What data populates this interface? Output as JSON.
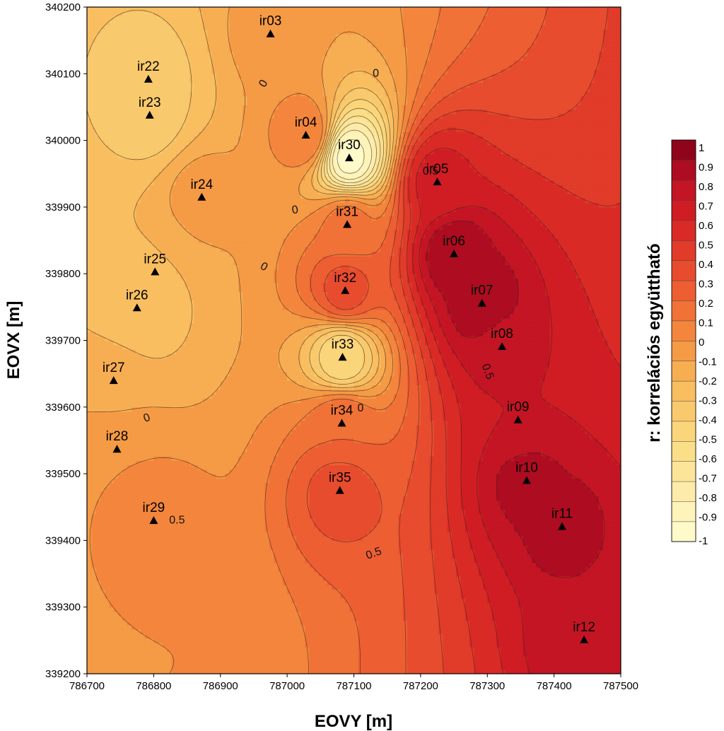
{
  "chart_data": {
    "type": "heatmap",
    "xlabel": "EOVY [m]",
    "ylabel": "EOVX [m]",
    "xlim": [
      786700,
      787500
    ],
    "ylim": [
      339200,
      340200
    ],
    "x_ticks": [
      786700,
      786800,
      786900,
      787000,
      787100,
      787200,
      787300,
      787400,
      787500
    ],
    "y_ticks": [
      339200,
      339300,
      339400,
      339500,
      339600,
      339700,
      339800,
      339900,
      340000,
      340100,
      340200
    ],
    "colorbar": {
      "title": "r: korrelációs együttható",
      "min": -1,
      "max": 1,
      "ticks": [
        "1",
        "0.9",
        "0.8",
        "0.7",
        "0.6",
        "0.5",
        "0.4",
        "0.3",
        "0.2",
        "0.1",
        "0",
        "-0.1",
        "-0.2",
        "-0.3",
        "-0.4",
        "-0.5",
        "-0.6",
        "-0.7",
        "-0.8",
        "-0.9",
        "-1"
      ]
    },
    "contour_levels_step": 0.1,
    "contour_labels": [
      {
        "text": "0",
        "x": 786965,
        "y": 340085,
        "rotate": -60
      },
      {
        "text": "0",
        "x": 787133,
        "y": 340100,
        "rotate": 0
      },
      {
        "text": "0",
        "x": 787012,
        "y": 339895,
        "rotate": -10
      },
      {
        "text": "0",
        "x": 786965,
        "y": 339810,
        "rotate": 30
      },
      {
        "text": "0",
        "x": 786790,
        "y": 339583,
        "rotate": -20
      },
      {
        "text": "0",
        "x": 787110,
        "y": 339598,
        "rotate": 0
      },
      {
        "text": "0.5",
        "x": 787215,
        "y": 339953,
        "rotate": 0
      },
      {
        "text": "0.5",
        "x": 787300,
        "y": 339653,
        "rotate": 70
      },
      {
        "text": "0.5",
        "x": 786835,
        "y": 339430,
        "rotate": 0
      },
      {
        "text": "0.5",
        "x": 787130,
        "y": 339380,
        "rotate": -20
      }
    ],
    "wells": [
      {
        "name": "ir03",
        "x": 786975,
        "y": 340160,
        "r": -0.05
      },
      {
        "name": "ir22",
        "x": 786792,
        "y": 340092,
        "r": -0.35
      },
      {
        "name": "ir23",
        "x": 786794,
        "y": 340038,
        "r": -0.35
      },
      {
        "name": "ir04",
        "x": 787028,
        "y": 340008,
        "r": 0.1
      },
      {
        "name": "ir30",
        "x": 787093,
        "y": 339974,
        "r": -0.95
      },
      {
        "name": "ir05",
        "x": 787225,
        "y": 339938,
        "r": 0.65
      },
      {
        "name": "ir24",
        "x": 786872,
        "y": 339915,
        "r": -0.05
      },
      {
        "name": "ir31",
        "x": 787090,
        "y": 339874,
        "r": 0.15
      },
      {
        "name": "ir06",
        "x": 787250,
        "y": 339830,
        "r": 0.9
      },
      {
        "name": "ir25",
        "x": 786802,
        "y": 339803,
        "r": -0.2
      },
      {
        "name": "ir32",
        "x": 787087,
        "y": 339775,
        "r": 0.35
      },
      {
        "name": "ir07",
        "x": 787292,
        "y": 339756,
        "r": 0.9
      },
      {
        "name": "ir26",
        "x": 786775,
        "y": 339749,
        "r": -0.3
      },
      {
        "name": "ir08",
        "x": 787322,
        "y": 339691,
        "r": 0.75
      },
      {
        "name": "ir33",
        "x": 787083,
        "y": 339675,
        "r": -0.5
      },
      {
        "name": "ir27",
        "x": 786740,
        "y": 339640,
        "r": -0.15
      },
      {
        "name": "ir09",
        "x": 787346,
        "y": 339581,
        "r": 0.7
      },
      {
        "name": "ir34",
        "x": 787082,
        "y": 339576,
        "r": 0.2
      },
      {
        "name": "ir28",
        "x": 786745,
        "y": 339537,
        "r": 0.0
      },
      {
        "name": "ir10",
        "x": 787359,
        "y": 339490,
        "r": 0.85
      },
      {
        "name": "ir35",
        "x": 787079,
        "y": 339475,
        "r": 0.35
      },
      {
        "name": "ir29",
        "x": 786800,
        "y": 339430,
        "r": 0.1
      },
      {
        "name": "ir11",
        "x": 787412,
        "y": 339421,
        "r": 0.85
      },
      {
        "name": "ir12",
        "x": 787445,
        "y": 339251,
        "r": 0.8
      }
    ]
  }
}
